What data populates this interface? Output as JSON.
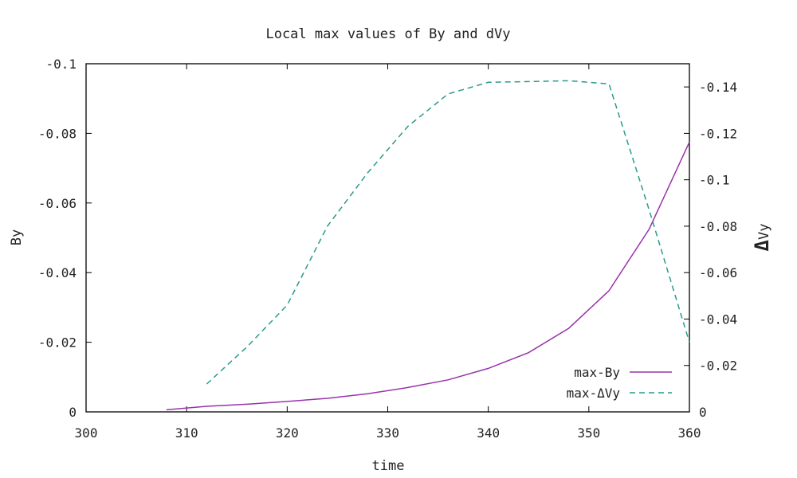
{
  "chart_data": {
    "type": "line",
    "title": "Local max values of By and dVy",
    "xlabel": "time",
    "ylabel": "By",
    "y2label": "Vy",
    "y2label_symbol": "Δ",
    "xlim": [
      300,
      360
    ],
    "ylim": [
      0,
      -0.1
    ],
    "y2lim": [
      0,
      -0.15
    ],
    "grid": false,
    "legend_position": "bottom-right",
    "x_ticks": [
      300,
      310,
      320,
      330,
      340,
      350,
      360
    ],
    "x_tick_labels": [
      "300",
      "310",
      "320",
      "330",
      "340",
      "350",
      "360"
    ],
    "y_ticks": [
      0,
      -0.02,
      -0.04,
      -0.06,
      -0.08,
      -0.1
    ],
    "y_tick_labels": [
      "0",
      "-0.02",
      "-0.04",
      "-0.06",
      "-0.08",
      "-0.1"
    ],
    "y2_ticks": [
      0,
      -0.02,
      -0.04,
      -0.06,
      -0.08,
      -0.1,
      -0.12,
      -0.14
    ],
    "y2_tick_labels": [
      "0",
      "-0.02",
      "-0.04",
      "-0.06",
      "-0.08",
      "-0.1",
      "-0.12",
      "-0.14"
    ],
    "series": [
      {
        "name": "max-By",
        "axis": "y",
        "style": "solid",
        "color": "#9933aa",
        "x": [
          308,
          312,
          316,
          320,
          324,
          328,
          332,
          336,
          340,
          344,
          348,
          352,
          356,
          360
        ],
        "y": [
          -0.0006,
          -0.0016,
          -0.0022,
          -0.003,
          -0.0039,
          -0.0052,
          -0.007,
          -0.0092,
          -0.0125,
          -0.017,
          -0.024,
          -0.0348,
          -0.0525,
          -0.0775
        ]
      },
      {
        "name": "max-ΔVy",
        "axis": "y2",
        "style": "dashed",
        "color": "#2a9a8c",
        "x": [
          312,
          316,
          320,
          324,
          328,
          332,
          336,
          340,
          344,
          348,
          352,
          356,
          360
        ],
        "y": [
          -0.012,
          -0.028,
          -0.046,
          -0.08,
          -0.103,
          -0.123,
          -0.137,
          -0.142,
          -0.1423,
          -0.1427,
          -0.1413,
          -0.087,
          -0.03
        ]
      }
    ]
  }
}
